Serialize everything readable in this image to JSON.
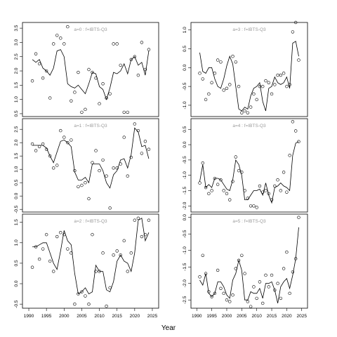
{
  "chart_data": {
    "type": "line",
    "xlabel": "Year",
    "x_ticks": [
      1990,
      1995,
      2000,
      2005,
      2010,
      2015,
      2020,
      2025
    ],
    "xlim": [
      1989,
      2026
    ],
    "panels": [
      {
        "title": "a=0  :  f=IBTS-Q3",
        "ylim": [
          0.4,
          3.7
        ],
        "y_ticks": [
          0.5,
          1.0,
          1.5,
          2.0,
          2.5,
          3.0,
          3.5
        ],
        "y_tick_labels": [
          "0.5",
          "1.0",
          "1.5",
          "2.0",
          "2.5",
          "3.0",
          "3.5"
        ],
        "fitted": {
          "x": [
            1991,
            1992,
            1993,
            1994,
            1995,
            1996,
            1997,
            1998,
            1999,
            2000,
            2001,
            2002,
            2003,
            2004,
            2005,
            2006,
            2007,
            2008,
            2009,
            2010,
            2011,
            2012,
            2013,
            2014,
            2015,
            2016,
            2017,
            2018,
            2019,
            2020,
            2021,
            2022,
            2023,
            2024
          ],
          "y": [
            2.4,
            2.3,
            2.4,
            2.1,
            2.0,
            1.85,
            2.1,
            2.7,
            2.75,
            2.5,
            1.55,
            1.45,
            1.4,
            1.5,
            1.35,
            1.2,
            1.55,
            1.95,
            1.9,
            1.45,
            1.35,
            1.0,
            1.4,
            1.95,
            1.9,
            2.0,
            2.25,
            1.9,
            2.4,
            2.5,
            2.2,
            2.3,
            1.85,
            2.7
          ]
        },
        "observed": {
          "x": [
            1991,
            1992,
            1993,
            1994,
            1995,
            1996,
            1997,
            1998,
            1999,
            2000,
            2001,
            2002,
            2003,
            2004,
            2005,
            2006,
            2007,
            2008,
            2009,
            2010,
            2011,
            2012,
            2013,
            2014,
            2015,
            2016,
            2017,
            2018,
            2019,
            2020,
            2021,
            2022,
            2023,
            2024
          ],
          "y": [
            1.65,
            2.6,
            2.25,
            1.75,
            2.0,
            1.05,
            2.95,
            3.25,
            3.15,
            2.95,
            3.55,
            0.95,
            1.25,
            1.95,
            0.55,
            0.65,
            2.05,
            1.95,
            1.75,
            0.85,
            1.55,
            1.05,
            1.2,
            2.95,
            2.95,
            2.2,
            0.55,
            0.55,
            2.4,
            2.5,
            1.85,
            3.0,
            2.05,
            2.75
          ]
        }
      },
      {
        "title": "a=1  :  f=IBTS-Q3",
        "ylim": [
          -0.6,
          2.9
        ],
        "y_ticks": [
          -0.5,
          0.0,
          0.5,
          1.0,
          1.5,
          2.0,
          2.5
        ],
        "y_tick_labels": [
          "-0.5",
          "0.0",
          "0.5",
          "1.0",
          "1.5",
          "2.0",
          "2.5"
        ],
        "fitted": {
          "x": [
            1991,
            1992,
            1993,
            1994,
            1995,
            1996,
            1997,
            1998,
            1999,
            2000,
            2001,
            2002,
            2003,
            2004,
            2005,
            2006,
            2007,
            2008,
            2009,
            2010,
            2011,
            2012,
            2013,
            2014,
            2015,
            2016,
            2017,
            2018,
            2019,
            2020,
            2021,
            2022,
            2023,
            2024
          ],
          "y": [
            1.9,
            1.9,
            1.9,
            1.9,
            1.8,
            1.5,
            1.25,
            1.65,
            2.05,
            2.1,
            2.0,
            1.85,
            0.9,
            0.6,
            0.6,
            0.7,
            0.5,
            1.2,
            1.2,
            1.2,
            0.95,
            0.5,
            0.3,
            0.8,
            0.95,
            1.35,
            1.4,
            1.05,
            1.55,
            2.55,
            2.4,
            1.85,
            1.9,
            1.4
          ]
        },
        "observed": {
          "x": [
            1991,
            1992,
            1993,
            1994,
            1995,
            1996,
            1997,
            1998,
            1999,
            2000,
            2001,
            2002,
            2003,
            2004,
            2005,
            2006,
            2007,
            2008,
            2009,
            2010,
            2011,
            2012,
            2013,
            2014,
            2015,
            2016,
            2017,
            2018,
            2019,
            2020,
            2021,
            2022,
            2023,
            2024
          ],
          "y": [
            1.95,
            1.7,
            1.85,
            1.95,
            1.75,
            1.5,
            1.05,
            1.15,
            2.45,
            2.2,
            2.0,
            2.1,
            0.95,
            0.35,
            0.4,
            0.5,
            -0.1,
            1.25,
            1.7,
            0.95,
            1.35,
            0.75,
            -0.45,
            1.05,
            1.05,
            1.2,
            2.2,
            0.75,
            1.45,
            2.7,
            2.45,
            1.6,
            2.05,
            1.75
          ]
        }
      },
      {
        "title": "a=2  :  f=IBTS-Q3",
        "ylim": [
          -0.6,
          1.7
        ],
        "y_ticks": [
          -0.5,
          0.0,
          0.5,
          1.0,
          1.5
        ],
        "y_tick_labels": [
          "-0.5",
          "0.0",
          "0.5",
          "1.0",
          "1.5"
        ],
        "fitted": {
          "x": [
            1991,
            1992,
            1993,
            1994,
            1995,
            1996,
            1997,
            1998,
            1999,
            2000,
            2001,
            2002,
            2003,
            2004,
            2005,
            2006,
            2007,
            2008,
            2009,
            2010,
            2011,
            2012,
            2013,
            2014,
            2015,
            2016,
            2017,
            2018,
            2019,
            2020,
            2021,
            2022,
            2023,
            2024
          ],
          "y": [
            0.9,
            0.9,
            0.95,
            1.0,
            1.0,
            0.75,
            0.5,
            0.35,
            0.8,
            1.3,
            1.05,
            0.95,
            0.25,
            -0.25,
            -0.2,
            -0.1,
            -0.25,
            -0.2,
            0.45,
            0.3,
            0.3,
            -0.15,
            -0.2,
            0.05,
            0.55,
            0.7,
            0.55,
            0.5,
            0.3,
            0.75,
            1.55,
            1.6,
            1.05,
            1.25
          ]
        },
        "observed": {
          "x": [
            1991,
            1992,
            1993,
            1994,
            1995,
            1996,
            1997,
            1998,
            1999,
            2000,
            2001,
            2002,
            2003,
            2004,
            2005,
            2006,
            2007,
            2008,
            2009,
            2010,
            2011,
            2012,
            2013,
            2014,
            2015,
            2016,
            2017,
            2018,
            2019,
            2020,
            2021,
            2022,
            2023,
            2024
          ],
          "y": [
            0.4,
            0.9,
            0.6,
            0.85,
            1.2,
            0.55,
            0.3,
            1.15,
            1.25,
            1.2,
            0.85,
            0.75,
            -0.5,
            -0.25,
            -0.2,
            -0.3,
            -0.5,
            1.2,
            0.3,
            0.3,
            0.75,
            -0.55,
            -0.1,
            0.7,
            0.8,
            0.7,
            1.05,
            0.3,
            0.75,
            1.55,
            1.6,
            1.15,
            1.2,
            1.55
          ]
        }
      },
      {
        "title": "a=3  :  f=IBTS-Q3",
        "ylim": [
          -1.3,
          1.2
        ],
        "y_ticks": [
          -1.0,
          -0.5,
          0.0,
          0.5,
          1.0
        ],
        "y_tick_labels": [
          "-1.0",
          "-0.5",
          "0.0",
          "0.5",
          "1.0"
        ],
        "fitted": {
          "x": [
            1991,
            1992,
            1993,
            1994,
            1995,
            1996,
            1997,
            1998,
            1999,
            2000,
            2001,
            2002,
            2003,
            2004,
            2005,
            2006,
            2007,
            2008,
            2009,
            2010,
            2011,
            2012,
            2013,
            2014,
            2015,
            2016,
            2017,
            2018,
            2019,
            2020,
            2021,
            2022,
            2023,
            2024
          ],
          "y": [
            0.4,
            -0.1,
            -0.15,
            0.0,
            0.0,
            -0.3,
            -0.5,
            -0.55,
            -0.3,
            0.05,
            0.3,
            0.1,
            -0.5,
            -1.1,
            -1.15,
            -1.05,
            -1.1,
            -0.75,
            -0.55,
            -0.5,
            -0.4,
            -0.9,
            -1.15,
            -0.55,
            -0.5,
            -0.25,
            -0.4,
            -0.45,
            -0.4,
            -0.25,
            -0.55,
            0.65,
            0.7,
            0.3
          ]
        },
        "observed": {
          "x": [
            1991,
            1992,
            1993,
            1994,
            1995,
            1996,
            1997,
            1998,
            1999,
            2000,
            2001,
            2002,
            2003,
            2004,
            2005,
            2006,
            2007,
            2008,
            2009,
            2010,
            2011,
            2012,
            2013,
            2014,
            2015,
            2016,
            2017,
            2018,
            2019,
            2020,
            2021,
            2022,
            2023,
            2024
          ],
          "y": [
            -0.15,
            -0.3,
            -0.85,
            -0.7,
            -0.4,
            -0.15,
            0.2,
            0.15,
            -0.6,
            -0.55,
            -0.45,
            0.3,
            0.15,
            -0.5,
            -1.2,
            -1.15,
            -1.2,
            -1.05,
            -0.7,
            -0.85,
            -0.5,
            -0.5,
            -0.35,
            -0.4,
            -0.7,
            -0.45,
            -0.2,
            -0.2,
            -0.15,
            -0.5,
            -0.45,
            0.95,
            1.2,
            0.2
          ]
        }
      },
      {
        "title": "a=4  :  f=IBTS-Q3",
        "ylim": [
          -2.2,
          0.85
        ],
        "y_ticks": [
          -2.0,
          -1.5,
          -1.0,
          -0.5,
          0.0,
          0.5
        ],
        "y_tick_labels": [
          "-2.0",
          "-1.5",
          "-1.0",
          "-0.5",
          "0.0",
          "0.5"
        ],
        "fitted": {
          "x": [
            1991,
            1992,
            1993,
            1994,
            1995,
            1996,
            1997,
            1998,
            1999,
            2000,
            2001,
            2002,
            2003,
            2004,
            2005,
            2006,
            2007,
            2008,
            2009,
            2010,
            2011,
            2012,
            2013,
            2014,
            2015,
            2016,
            2017,
            2018,
            2019,
            2020,
            2021,
            2022,
            2023,
            2024
          ],
          "y": [
            -1.2,
            -0.65,
            -1.4,
            -1.3,
            -1.4,
            -1.1,
            -1.1,
            -1.15,
            -1.3,
            -1.45,
            -1.5,
            -1.15,
            -0.5,
            -0.65,
            -1.0,
            -1.8,
            -1.8,
            -1.65,
            -1.5,
            -1.5,
            -1.45,
            -1.65,
            -1.25,
            -1.65,
            -1.9,
            -1.4,
            -1.35,
            -1.25,
            -1.35,
            -1.4,
            -1.5,
            -0.35,
            0.05,
            0.1
          ]
        },
        "observed": {
          "x": [
            1991,
            1992,
            1993,
            1994,
            1995,
            1996,
            1997,
            1998,
            1999,
            2000,
            2001,
            2002,
            2003,
            2004,
            2005,
            2006,
            2007,
            2008,
            2009,
            2010,
            2011,
            2012,
            2013,
            2014,
            2015,
            2016,
            2017,
            2018,
            2019,
            2020,
            2021,
            2022,
            2023,
            2024
          ],
          "y": [
            -1.25,
            -0.6,
            -1.4,
            -1.6,
            -1.5,
            -1.1,
            -1.3,
            -1.15,
            -1.5,
            -1.6,
            -1.8,
            -1.2,
            -0.4,
            -0.85,
            -0.9,
            -1.5,
            -1.75,
            -2.0,
            -2.0,
            -2.05,
            -1.35,
            -1.55,
            -1.5,
            -1.6,
            -1.8,
            -1.35,
            -1.15,
            -1.5,
            -0.9,
            -1.55,
            -0.35,
            0.75,
            0.45,
            0.1
          ]
        }
      },
      {
        "title": "a=5  :  f=IBTS-Q3",
        "ylim": [
          -2.75,
          0.1
        ],
        "y_ticks": [
          -2.5,
          -2.0,
          -1.5,
          -1.0,
          -0.5,
          0.0
        ],
        "y_tick_labels": [
          "-2.5",
          "-2.0",
          "-1.5",
          "-1.0",
          "-0.5",
          "0.0"
        ],
        "fitted": {
          "x": [
            1991,
            1992,
            1993,
            1994,
            1995,
            1996,
            1997,
            1998,
            1999,
            2000,
            2001,
            2002,
            2003,
            2004,
            2005,
            2006,
            2007,
            2008,
            2009,
            2010,
            2011,
            2012,
            2013,
            2014,
            2015,
            2016,
            2017,
            2018,
            2019,
            2020,
            2021,
            2022,
            2023,
            2024
          ],
          "y": [
            -1.9,
            -2.05,
            -1.7,
            -2.3,
            -2.4,
            -2.3,
            -1.95,
            -1.95,
            -2.1,
            -2.35,
            -2.45,
            -1.9,
            -1.7,
            -1.3,
            -1.6,
            -2.5,
            -2.5,
            -2.25,
            -2.3,
            -2.3,
            -2.15,
            -2.45,
            -2.0,
            -2.0,
            -1.95,
            -2.2,
            -2.6,
            -2.1,
            -1.95,
            -1.85,
            -2.15,
            -1.75,
            -1.25,
            -0.3
          ]
        },
        "observed": {
          "x": [
            1991,
            1992,
            1993,
            1994,
            1995,
            1996,
            1997,
            1998,
            1999,
            2000,
            2001,
            2002,
            2003,
            2004,
            2005,
            2006,
            2007,
            2008,
            2009,
            2010,
            2011,
            2012,
            2013,
            2014,
            2015,
            2016,
            2017,
            2018,
            2019,
            2020,
            2021,
            2022,
            2023,
            2024
          ],
          "y": [
            -1.8,
            -1.15,
            -1.7,
            -2.25,
            -2.4,
            -2.3,
            -1.6,
            -2.15,
            -2.3,
            -2.5,
            -2.55,
            -2.35,
            -1.55,
            -1.3,
            -1.15,
            -1.7,
            -2.55,
            -2.7,
            -2.1,
            -2.45,
            -1.95,
            -2.6,
            -1.75,
            -2.1,
            -1.75,
            -2.2,
            -2.0,
            -2.45,
            -1.55,
            -1.05,
            -2.3,
            -1.65,
            -1.25,
            0.0
          ]
        }
      }
    ]
  }
}
